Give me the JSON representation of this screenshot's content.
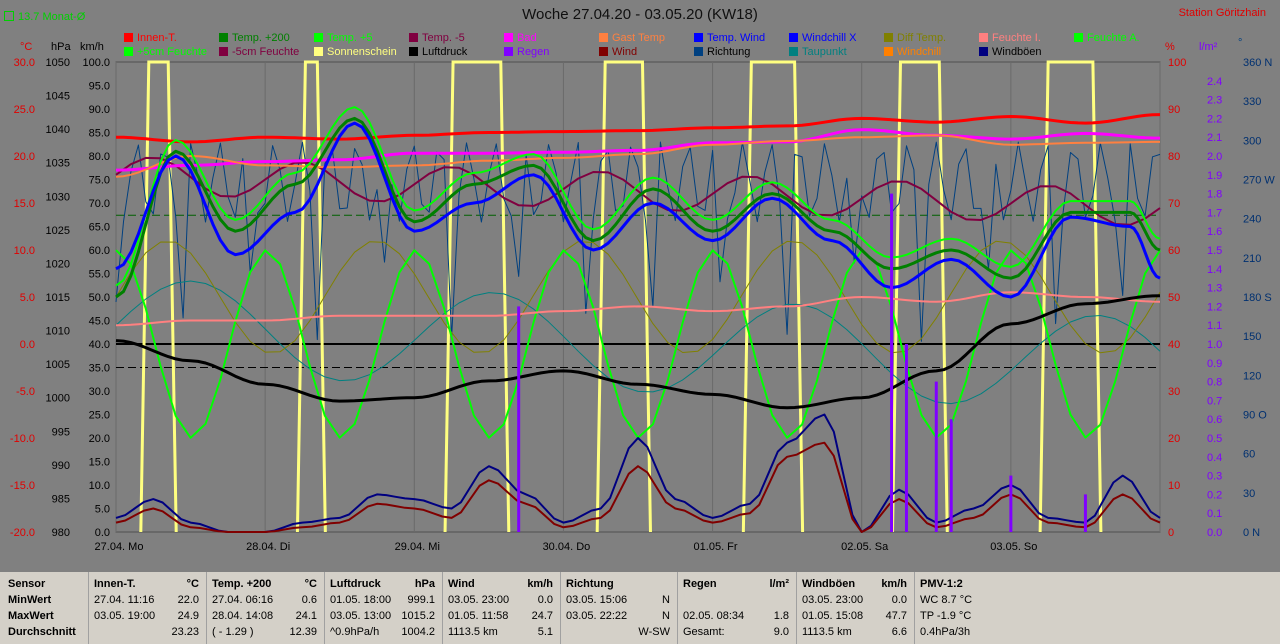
{
  "header": {
    "title": "Woche 27.04.20 - 03.05.20 (KW18)",
    "station": "Station Göritzhain",
    "monat": "13.7 Monat-Ø"
  },
  "legend": [
    {
      "label": "Innen-T.",
      "color": "#ff0000"
    },
    {
      "label": "Temp. +200",
      "color": "#008000"
    },
    {
      "label": "Temp. +5",
      "color": "#00ff00"
    },
    {
      "label": "Temp. -5",
      "color": "#800040"
    },
    {
      "label": "Bad",
      "color": "#ff00ff"
    },
    {
      "label": "Gast Temp",
      "color": "#ff8040"
    },
    {
      "label": "Temp. Wind",
      "color": "#0000ff"
    },
    {
      "label": "Windchill X",
      "color": "#0000ff"
    },
    {
      "label": "Diff Temp.",
      "color": "#808000"
    },
    {
      "label": "Feuchte I.",
      "color": "#ff8080"
    },
    {
      "label": "Feuchte A.",
      "color": "#00ff00"
    },
    {
      "label": "+5cm Feuchte",
      "color": "#00ff00"
    },
    {
      "label": "-5cm Feuchte",
      "color": "#800040"
    },
    {
      "label": "Sonnenschein",
      "color": "#ffff80"
    },
    {
      "label": "Luftdruck",
      "color": "#000000"
    },
    {
      "label": "Regen",
      "color": "#8000ff"
    },
    {
      "label": "Wind",
      "color": "#800000"
    },
    {
      "label": "Richtung",
      "color": "#004080"
    },
    {
      "label": "Taupunkt",
      "color": "#008080"
    },
    {
      "label": "Windchill",
      "color": "#ff8000"
    },
    {
      "label": "Windböen",
      "color": "#000080"
    }
  ],
  "axes": {
    "temp_unit": "°C",
    "press_unit": "hPa",
    "kmh_unit": "km/h",
    "pct_unit": "%",
    "rain_unit": "l/m²",
    "dir_unit": "°",
    "temp_ticks": [
      "30.0",
      "25.0",
      "20.0",
      "15.0",
      "10.0",
      "5.0",
      "0.0",
      "-5.0",
      "-10.0",
      "-15.0",
      "-20.0"
    ],
    "press_ticks": [
      "1050",
      "1045",
      "1040",
      "1035",
      "1030",
      "1025",
      "1020",
      "1015",
      "1010",
      "1005",
      "1000",
      "995",
      "990",
      "985",
      "980"
    ],
    "kmh_ticks": [
      "100.0",
      "95.0",
      "90.0",
      "85.0",
      "80.0",
      "75.0",
      "70.0",
      "65.0",
      "60.0",
      "55.0",
      "50.0",
      "45.0",
      "40.0",
      "35.0",
      "30.0",
      "25.0",
      "20.0",
      "15.0",
      "10.0",
      "5.0",
      "0.0"
    ],
    "pct_ticks": [
      "100",
      "90",
      "80",
      "70",
      "60",
      "50",
      "40",
      "30",
      "20",
      "10",
      "0"
    ],
    "rain_ticks": [
      "2.4",
      "2.3",
      "2.2",
      "2.1",
      "2.0",
      "1.9",
      "1.8",
      "1.7",
      "1.6",
      "1.5",
      "1.4",
      "1.3",
      "1.2",
      "1.1",
      "1.0",
      "0.9",
      "0.8",
      "0.7",
      "0.6",
      "0.5",
      "0.4",
      "0.3",
      "0.2",
      "0.1",
      "0.0"
    ],
    "dir_ticks": [
      "360 N",
      "330",
      "300",
      "270 W",
      "240",
      "210",
      "180 S",
      "150",
      "120",
      "90 O",
      "60",
      "30",
      "0 N"
    ],
    "day_labels": [
      "27.04. Mo",
      "28.04. Di",
      "29.04. Mi",
      "30.04. Do",
      "01.05. Fr",
      "02.05. Sa",
      "03.05. So"
    ]
  },
  "colors": {
    "innen": "#ff0000",
    "bad": "#ff00ff",
    "gast": "#ff8040",
    "feuchteI": "#ff8080",
    "temp200": "#008000",
    "temp5": "#00ff00",
    "tempwind": "#0000ff",
    "tempm5": "#800040",
    "luftdruck": "#000000",
    "wind": "#800000",
    "boeen": "#000080",
    "sonne": "#ffff80",
    "regen": "#8000ff",
    "richtung": "#004080",
    "taupunkt": "#008080",
    "diff": "#808000"
  },
  "chart_data": {
    "type": "line",
    "x_days": [
      "27.04.",
      "28.04.",
      "29.04.",
      "30.04.",
      "01.05.",
      "02.05.",
      "03.05."
    ],
    "ylim_temp": [
      -20,
      30
    ],
    "ylim_pressure": [
      980,
      1050
    ],
    "ylim_kmh": [
      0,
      100
    ],
    "ylim_pct": [
      0,
      100
    ],
    "ylim_rain": [
      0,
      2.5
    ],
    "series": [
      {
        "name": "Innen-T.",
        "x": [
          0,
          0.5,
          1,
          1.5,
          2,
          2.5,
          3,
          3.5,
          4,
          4.5,
          5,
          5.5,
          6,
          6.5,
          7
        ],
        "values": [
          22.0,
          21.5,
          22.0,
          21.8,
          22.2,
          22.5,
          22.6,
          22.7,
          23.0,
          23.2,
          24.0,
          23.6,
          24.2,
          23.5,
          24.4
        ]
      },
      {
        "name": "Bad",
        "x": [
          0,
          0.5,
          1,
          1.5,
          2,
          2.5,
          3,
          3.5,
          4,
          4.5,
          5,
          5.5,
          6,
          6.5,
          7
        ],
        "values": [
          18.5,
          19.0,
          19.4,
          19.6,
          20.3,
          20.3,
          20.4,
          20.6,
          21.4,
          21.5,
          22.8,
          22.2,
          21.8,
          22.4,
          21.9
        ]
      },
      {
        "name": "Gast Temp",
        "x": [
          0,
          0.5,
          1,
          1.5,
          2,
          2.5,
          3,
          3.5,
          4,
          4.5,
          5,
          5.5,
          6,
          6.5,
          7
        ],
        "values": [
          17.8,
          20.0,
          19.0,
          18.8,
          19.0,
          19.5,
          19.8,
          20.2,
          21.2,
          21.6,
          22.0,
          22.2,
          21.2,
          21.4,
          21.5
        ]
      },
      {
        "name": "Temp. +200",
        "x": [
          0,
          0.4,
          0.8,
          1.2,
          1.6,
          2.0,
          2.4,
          2.8,
          3.2,
          3.6,
          4.0,
          4.4,
          4.8,
          5.2,
          5.6,
          6.0,
          6.4,
          6.8,
          7.0
        ],
        "values": [
          5.0,
          20.5,
          12.0,
          17.0,
          24.0,
          13.0,
          17.0,
          19.0,
          11.0,
          16.5,
          12.0,
          16.0,
          12.0,
          8.0,
          10.0,
          7.0,
          14.0,
          14.0,
          10.0
        ]
      },
      {
        "name": "Temp. Wind",
        "x": [
          0,
          0.4,
          0.8,
          1.2,
          1.6,
          2.0,
          2.4,
          2.8,
          3.2,
          3.6,
          4.0,
          4.4,
          4.8,
          5.2,
          5.6,
          6.0,
          6.4,
          6.8,
          7.0
        ],
        "values": [
          8.0,
          20.0,
          9.5,
          14.0,
          23.5,
          12.0,
          15.0,
          18.0,
          10.0,
          15.0,
          11.0,
          15.5,
          11.0,
          6.0,
          9.0,
          5.0,
          13.5,
          12.5,
          7.0
        ]
      },
      {
        "name": "Luftdruck",
        "x": [
          0,
          0.5,
          1,
          1.5,
          2,
          2.5,
          3,
          3.5,
          4,
          4.5,
          5,
          5.5,
          6,
          6.5,
          7
        ],
        "values": [
          1008.5,
          1005.5,
          1002.0,
          999.5,
          1000.0,
          1002.5,
          1004.0,
          1002.0,
          1000.5,
          998.5,
          1000.0,
          1004.0,
          1011.0,
          1014.0,
          1015.2
        ]
      },
      {
        "name": "Wind",
        "x": [
          0,
          0.25,
          0.5,
          0.75,
          1,
          1.25,
          1.5,
          1.75,
          2,
          2.25,
          2.5,
          2.75,
          3,
          3.25,
          3.5,
          3.75,
          4,
          4.25,
          4.5,
          4.75,
          5,
          5.25,
          5.5,
          5.75,
          6,
          6.25,
          6.5,
          6.75,
          7
        ],
        "values": [
          2,
          5,
          1,
          0,
          0,
          1,
          2,
          6,
          5,
          3,
          11,
          6,
          1,
          3,
          14,
          5,
          2,
          4,
          16,
          19,
          0,
          7,
          1,
          3,
          8,
          2,
          1,
          8,
          2
        ]
      },
      {
        "name": "Windböen",
        "x": [
          0,
          0.25,
          0.5,
          0.75,
          1,
          1.25,
          1.5,
          1.75,
          2,
          2.25,
          2.5,
          2.75,
          3,
          3.25,
          3.5,
          3.75,
          4,
          4.25,
          4.5,
          4.75,
          5,
          5.25,
          5.5,
          5.75,
          6,
          6.25,
          6.5,
          6.75,
          7
        ],
        "values": [
          3,
          7,
          2,
          0,
          0,
          2,
          3,
          8,
          7,
          5,
          14,
          8,
          2,
          5,
          20,
          7,
          3,
          6,
          19,
          25,
          0,
          9,
          2,
          5,
          10,
          3,
          2,
          12,
          3
        ]
      },
      {
        "name": "Feuchte I.",
        "x": [
          0,
          0.5,
          1,
          1.5,
          2,
          2.5,
          3,
          3.5,
          4,
          4.5,
          5,
          5.5,
          6,
          6.5,
          7
        ],
        "values": [
          44,
          45,
          45,
          46,
          46,
          46,
          47,
          48,
          47,
          48,
          50,
          49,
          51,
          50,
          49
        ]
      },
      {
        "name": "Sonnenschein",
        "x": [
          0,
          1,
          2,
          3,
          4,
          5,
          6
        ],
        "values": [
          1,
          1,
          1,
          1,
          1,
          1,
          1
        ]
      },
      {
        "name": "Regen",
        "x": [
          2.7,
          5.2,
          5.3,
          5.5,
          5.6,
          6.0,
          6.5
        ],
        "values": [
          1.2,
          1.8,
          1.0,
          0.8,
          0.6,
          0.3,
          0.2
        ]
      }
    ]
  },
  "table": {
    "rowlabels": [
      "Sensor",
      "MinWert",
      "MaxWert",
      "Durchschnitt"
    ],
    "cols": [
      {
        "h1": "Innen-T.",
        "h2": "°C",
        "rows": [
          [
            "27.04.  11:16",
            "22.0"
          ],
          [
            "03.05.  19:00",
            "24.9"
          ],
          [
            "",
            "23.23"
          ]
        ]
      },
      {
        "h1": "Temp. +200",
        "h2": "°C",
        "rows": [
          [
            "27.04.  06:16",
            "0.6"
          ],
          [
            "28.04.  14:08",
            "24.1"
          ],
          [
            "( - 1.29 )",
            "12.39"
          ]
        ]
      },
      {
        "h1": "Luftdruck",
        "h2": "hPa",
        "rows": [
          [
            "01.05.  18:00",
            "999.1"
          ],
          [
            "03.05.  13:00",
            "1015.2"
          ],
          [
            "^0.9hPa/h",
            "1004.2"
          ]
        ]
      },
      {
        "h1": "Wind",
        "h2": "km/h",
        "rows": [
          [
            "03.05.  23:00",
            "0.0"
          ],
          [
            "01.05.  11:58",
            "24.7"
          ],
          [
            "1113.5 km",
            "5.1"
          ]
        ]
      },
      {
        "h1": "Richtung",
        "h2": "",
        "rows": [
          [
            "03.05.  15:06",
            "N"
          ],
          [
            "03.05.  22:22",
            "N"
          ],
          [
            "",
            "W-SW"
          ]
        ]
      },
      {
        "h1": "Regen",
        "h2": "l/m²",
        "rows": [
          [
            "",
            ""
          ],
          [
            "02.05.  08:34",
            "1.8"
          ],
          [
            "Gesamt:",
            "9.0"
          ]
        ]
      },
      {
        "h1": "Windböen",
        "h2": "km/h",
        "rows": [
          [
            "03.05.  23:00",
            "0.0"
          ],
          [
            "01.05.  15:08",
            "47.7"
          ],
          [
            "1113.5 km",
            "6.6"
          ]
        ]
      },
      {
        "h1": "PMV-1:2",
        "h2": "",
        "rows": [
          [
            "WC 8.7 °C",
            ""
          ],
          [
            "TP -1.9 °C",
            ""
          ],
          [
            "0.4hPa/3h",
            ""
          ]
        ]
      }
    ]
  }
}
